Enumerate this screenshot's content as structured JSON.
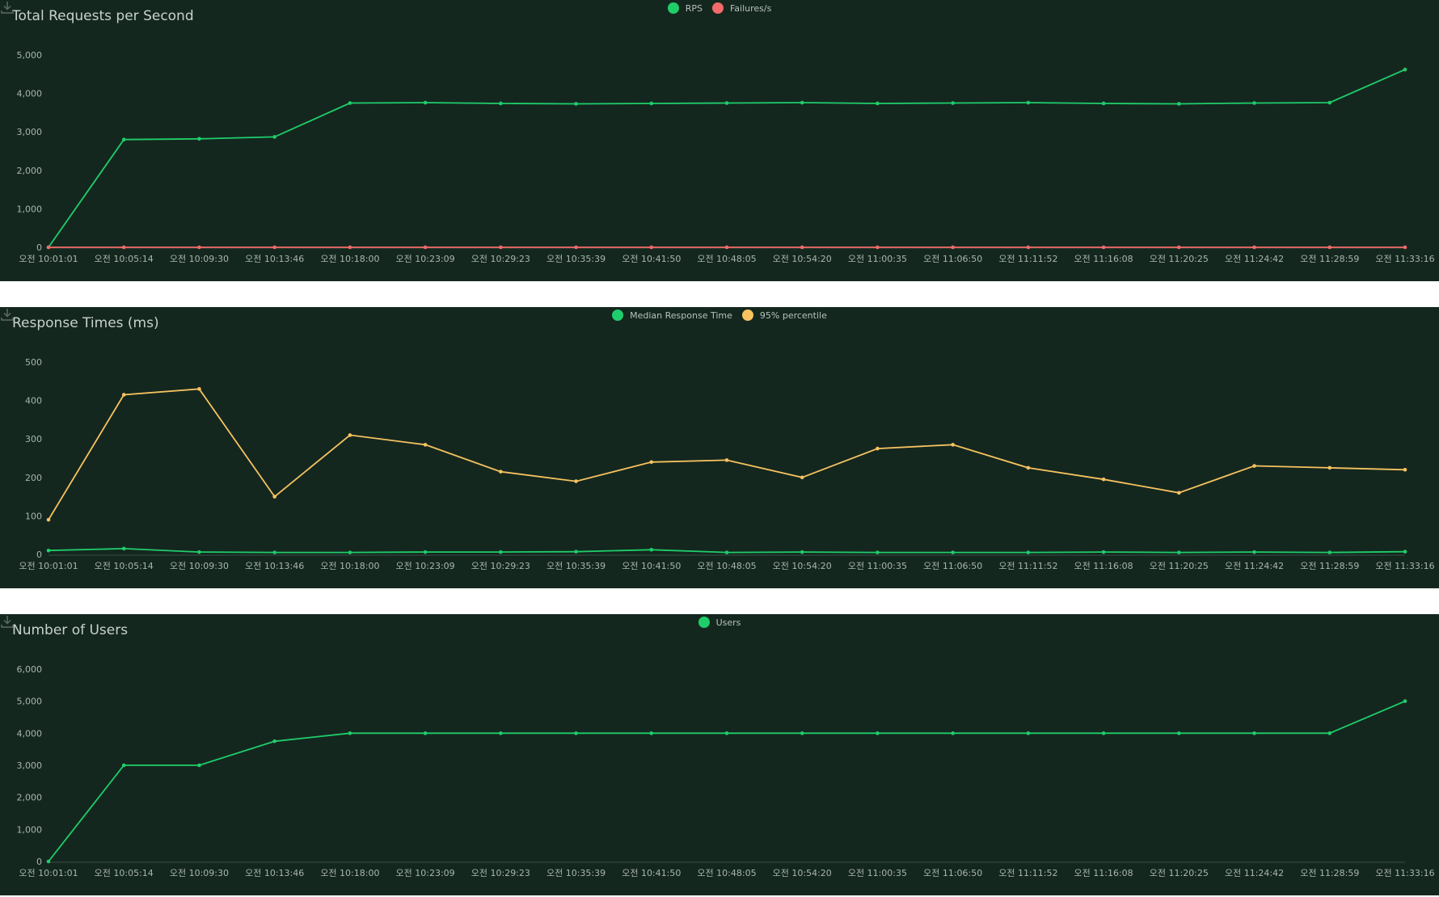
{
  "x_labels": [
    "오전 10:01:01",
    "오전 10:05:14",
    "오전 10:09:30",
    "오전 10:13:46",
    "오전 10:18:00",
    "오전 10:23:09",
    "오전 10:29:23",
    "오전 10:35:39",
    "오전 10:41:50",
    "오전 10:48:05",
    "오전 10:54:20",
    "오전 11:00:35",
    "오전 11:06:50",
    "오전 11:11:52",
    "오전 11:16:08",
    "오전 11:20:25",
    "오전 11:24:42",
    "오전 11:28:59",
    "오전 11:33:16"
  ],
  "panels": {
    "rps": {
      "title": "Total Requests per Second",
      "legend": [
        {
          "label": "RPS",
          "color": "#1fce6a"
        },
        {
          "label": "Failures/s",
          "color": "#f26a6a"
        }
      ],
      "download_icon": "download-icon"
    },
    "response": {
      "title": "Response Times (ms)",
      "legend": [
        {
          "label": "Median Response Time",
          "color": "#1fce6a"
        },
        {
          "label": "95% percentile",
          "color": "#f7c35f"
        }
      ],
      "download_icon": "download-icon"
    },
    "users": {
      "title": "Number of Users",
      "legend": [
        {
          "label": "Users",
          "color": "#1fce6a"
        }
      ],
      "download_icon": "download-icon"
    }
  },
  "chart_data": [
    {
      "type": "line",
      "title": "Total Requests per Second",
      "y_ticks": [
        "0",
        "1,000",
        "2,000",
        "3,000",
        "4,000",
        "5,000"
      ],
      "ylim": [
        0,
        5000
      ],
      "grid": false,
      "legend_position": "top-center",
      "series": [
        {
          "name": "RPS",
          "color": "#1fce6a",
          "values": [
            0,
            2800,
            2820,
            2870,
            3750,
            3760,
            3740,
            3730,
            3740,
            3750,
            3760,
            3740,
            3750,
            3760,
            3740,
            3730,
            3750,
            3760,
            4620
          ]
        },
        {
          "name": "Failures/s",
          "color": "#f26a6a",
          "values": [
            0,
            0,
            0,
            0,
            0,
            0,
            0,
            0,
            0,
            0,
            0,
            0,
            0,
            0,
            0,
            0,
            0,
            0,
            0
          ]
        }
      ]
    },
    {
      "type": "line",
      "title": "Response Times (ms)",
      "y_ticks": [
        "0",
        "100",
        "200",
        "300",
        "400",
        "500"
      ],
      "ylim": [
        0,
        500
      ],
      "grid": false,
      "legend_position": "top-center",
      "series": [
        {
          "name": "Median Response Time",
          "color": "#1fce6a",
          "values": [
            10,
            15,
            6,
            5,
            5,
            6,
            6,
            7,
            12,
            5,
            6,
            5,
            5,
            5,
            6,
            5,
            6,
            5,
            7
          ]
        },
        {
          "name": "95% percentile",
          "color": "#f7c35f",
          "values": [
            90,
            415,
            430,
            150,
            310,
            285,
            215,
            190,
            240,
            245,
            200,
            275,
            285,
            225,
            195,
            160,
            230,
            225,
            220
          ]
        }
      ]
    },
    {
      "type": "line",
      "title": "Number of Users",
      "y_ticks": [
        "0",
        "1,000",
        "2,000",
        "3,000",
        "4,000",
        "5,000",
        "6,000"
      ],
      "ylim": [
        0,
        6000
      ],
      "grid": false,
      "legend_position": "top-center",
      "series": [
        {
          "name": "Users",
          "color": "#1fce6a",
          "values": [
            0,
            3000,
            3000,
            3750,
            4000,
            4000,
            4000,
            4000,
            4000,
            4000,
            4000,
            4000,
            4000,
            4000,
            4000,
            4000,
            4000,
            4000,
            5000
          ]
        }
      ]
    }
  ]
}
